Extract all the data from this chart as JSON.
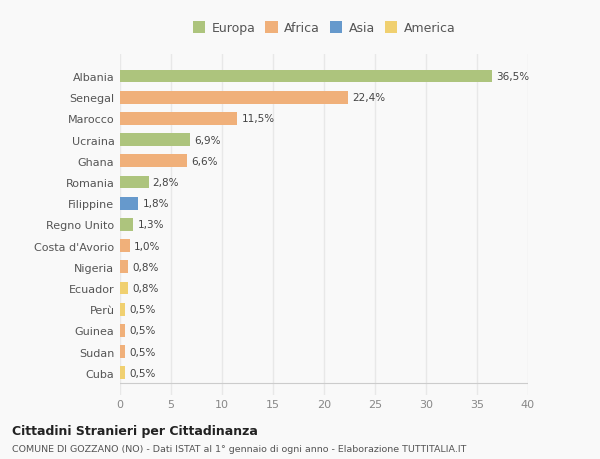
{
  "countries": [
    "Albania",
    "Senegal",
    "Marocco",
    "Ucraina",
    "Ghana",
    "Romania",
    "Filippine",
    "Regno Unito",
    "Costa d'Avorio",
    "Nigeria",
    "Ecuador",
    "Perù",
    "Guinea",
    "Sudan",
    "Cuba"
  ],
  "values": [
    36.5,
    22.4,
    11.5,
    6.9,
    6.6,
    2.8,
    1.8,
    1.3,
    1.0,
    0.8,
    0.8,
    0.5,
    0.5,
    0.5,
    0.5
  ],
  "labels": [
    "36,5%",
    "22,4%",
    "11,5%",
    "6,9%",
    "6,6%",
    "2,8%",
    "1,8%",
    "1,3%",
    "1,0%",
    "0,8%",
    "0,8%",
    "0,5%",
    "0,5%",
    "0,5%",
    "0,5%"
  ],
  "continents": [
    "Europa",
    "Africa",
    "Africa",
    "Europa",
    "Africa",
    "Europa",
    "Asia",
    "Europa",
    "Africa",
    "Africa",
    "America",
    "America",
    "Africa",
    "Africa",
    "America"
  ],
  "colors": {
    "Europa": "#adc47d",
    "Africa": "#f0b07a",
    "Asia": "#6699cc",
    "America": "#f0d070"
  },
  "xlim": [
    0,
    40
  ],
  "xticks": [
    0,
    5,
    10,
    15,
    20,
    25,
    30,
    35,
    40
  ],
  "title": "Cittadini Stranieri per Cittadinanza",
  "subtitle": "COMUNE DI GOZZANO (NO) - Dati ISTAT al 1° gennaio di ogni anno - Elaborazione TUTTITALIA.IT",
  "bg_color": "#f9f9f9",
  "grid_color": "#e8e8e8",
  "bar_height": 0.6
}
